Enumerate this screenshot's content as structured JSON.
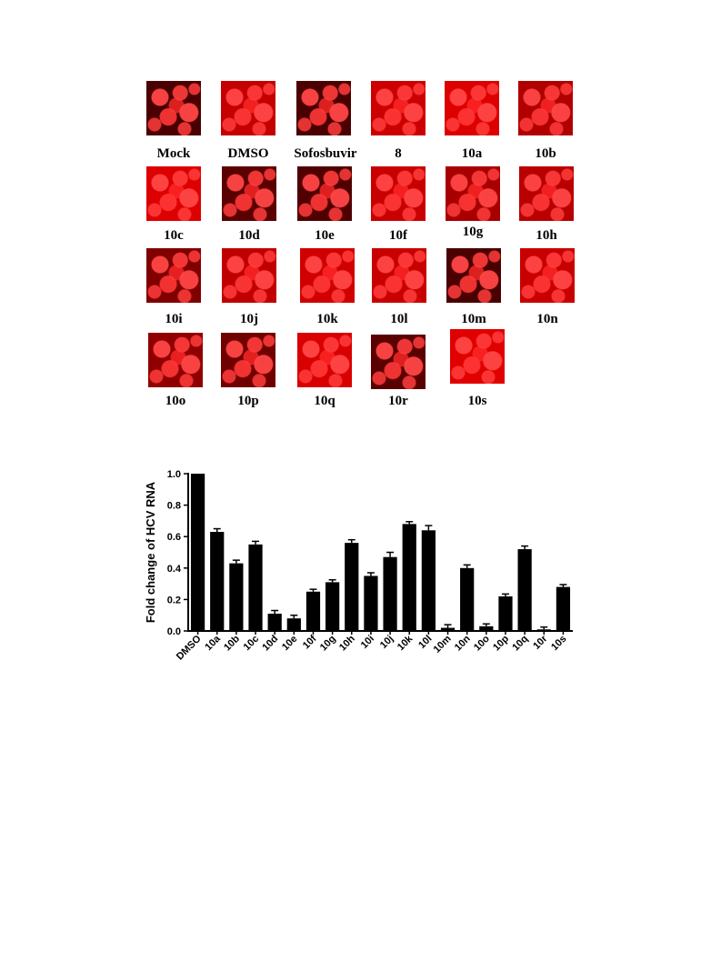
{
  "micrograph_panels": [
    {
      "label": "Mock",
      "tone": "#4a0000"
    },
    {
      "label": "DMSO",
      "tone": "#c40000"
    },
    {
      "label": "Sofosbuvir",
      "tone": "#4a0000"
    },
    {
      "label": "8",
      "tone": "#cc0000"
    },
    {
      "label": "10a",
      "tone": "#dd0000"
    },
    {
      "label": "10b",
      "tone": "#b00000"
    },
    {
      "label": "10c",
      "tone": "#dd0000"
    },
    {
      "label": "10d",
      "tone": "#5a0000"
    },
    {
      "label": "10e",
      "tone": "#500000"
    },
    {
      "label": "10f",
      "tone": "#c80000"
    },
    {
      "label": "10g",
      "tone": "#a80000"
    },
    {
      "label": "10h",
      "tone": "#b80000"
    },
    {
      "label": "10i",
      "tone": "#800000"
    },
    {
      "label": "10j",
      "tone": "#c00000"
    },
    {
      "label": "10k",
      "tone": "#d00000"
    },
    {
      "label": "10l",
      "tone": "#c80000"
    },
    {
      "label": "10m",
      "tone": "#4a0000"
    },
    {
      "label": "10n",
      "tone": "#c80000"
    },
    {
      "label": "10o",
      "tone": "#900000"
    },
    {
      "label": "10p",
      "tone": "#700000"
    },
    {
      "label": "10q",
      "tone": "#d80000"
    },
    {
      "label": "10r",
      "tone": "#5a0000"
    },
    {
      "label": "10s",
      "tone": "#e00000"
    }
  ],
  "chart_data": {
    "type": "bar",
    "title": "",
    "xlabel": "",
    "ylabel": "Fold change of HCV RNA",
    "ylim": [
      0,
      1.0
    ],
    "yticks": [
      "0.0",
      "0.2",
      "0.4",
      "0.6",
      "0.8",
      "1.0"
    ],
    "categories": [
      "DMSO",
      "10a",
      "10b",
      "10c",
      "10d",
      "10e",
      "10f",
      "10g",
      "10h",
      "10i",
      "10j",
      "10k",
      "10l",
      "10m",
      "10n",
      "10o",
      "10p",
      "10q",
      "10r",
      "10s"
    ],
    "values": [
      1.0,
      0.63,
      0.43,
      0.55,
      0.11,
      0.08,
      0.25,
      0.31,
      0.56,
      0.35,
      0.47,
      0.68,
      0.64,
      0.02,
      0.4,
      0.03,
      0.22,
      0.52,
      0.01,
      0.28
    ],
    "errors": [
      0.0,
      0.02,
      0.02,
      0.02,
      0.02,
      0.02,
      0.015,
      0.015,
      0.02,
      0.02,
      0.03,
      0.015,
      0.03,
      0.02,
      0.02,
      0.015,
      0.015,
      0.02,
      0.015,
      0.015
    ],
    "bar_color": "#000000"
  }
}
